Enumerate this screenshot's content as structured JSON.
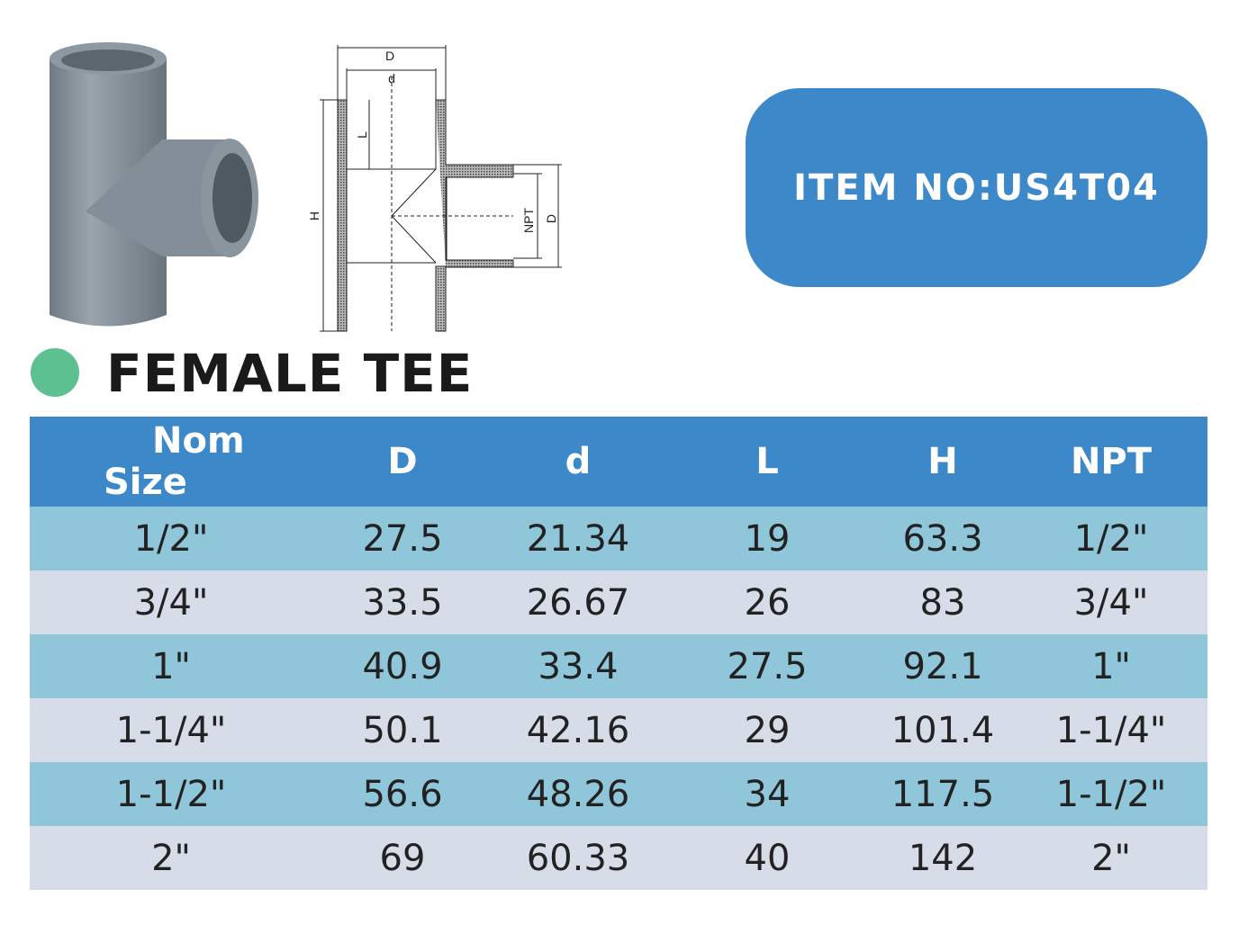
{
  "item_badge": {
    "label": "ITEM NO:US4T04"
  },
  "product": {
    "title": "FEMALE TEE"
  },
  "drawing": {
    "labels": {
      "outer_diameter": "D",
      "inner_diameter": "d",
      "socket_length": "L",
      "height": "H",
      "thread": "NPT",
      "branch_diameter": "D"
    }
  },
  "table": {
    "headers": {
      "nom_line1": "Nom",
      "nom_line2": "Size",
      "D": "D",
      "d": "d",
      "L": "L",
      "H": "H",
      "NPT": "NPT"
    },
    "rows": [
      [
        "1/2\"",
        "27.5",
        "21.34",
        "19",
        "63.3",
        "1/2\""
      ],
      [
        "3/4\"",
        "33.5",
        "26.67",
        "26",
        "83",
        "3/4\""
      ],
      [
        "1\"",
        "40.9",
        "33.4",
        "27.5",
        "92.1",
        "1\""
      ],
      [
        "1-1/4\"",
        "50.1",
        "42.16",
        "29",
        "101.4",
        "1-1/4\""
      ],
      [
        "1-1/2\"",
        "56.6",
        "48.26",
        "34",
        "117.5",
        "1-1/2\""
      ],
      [
        "2\"",
        "69",
        "60.33",
        "40",
        "142",
        "2\""
      ]
    ]
  },
  "colors": {
    "header": "#3d88c9",
    "row_odd": "#8fc6d9",
    "row_even": "#d6dce8",
    "dot": "#5cc090",
    "badge": "#3d88c9"
  }
}
